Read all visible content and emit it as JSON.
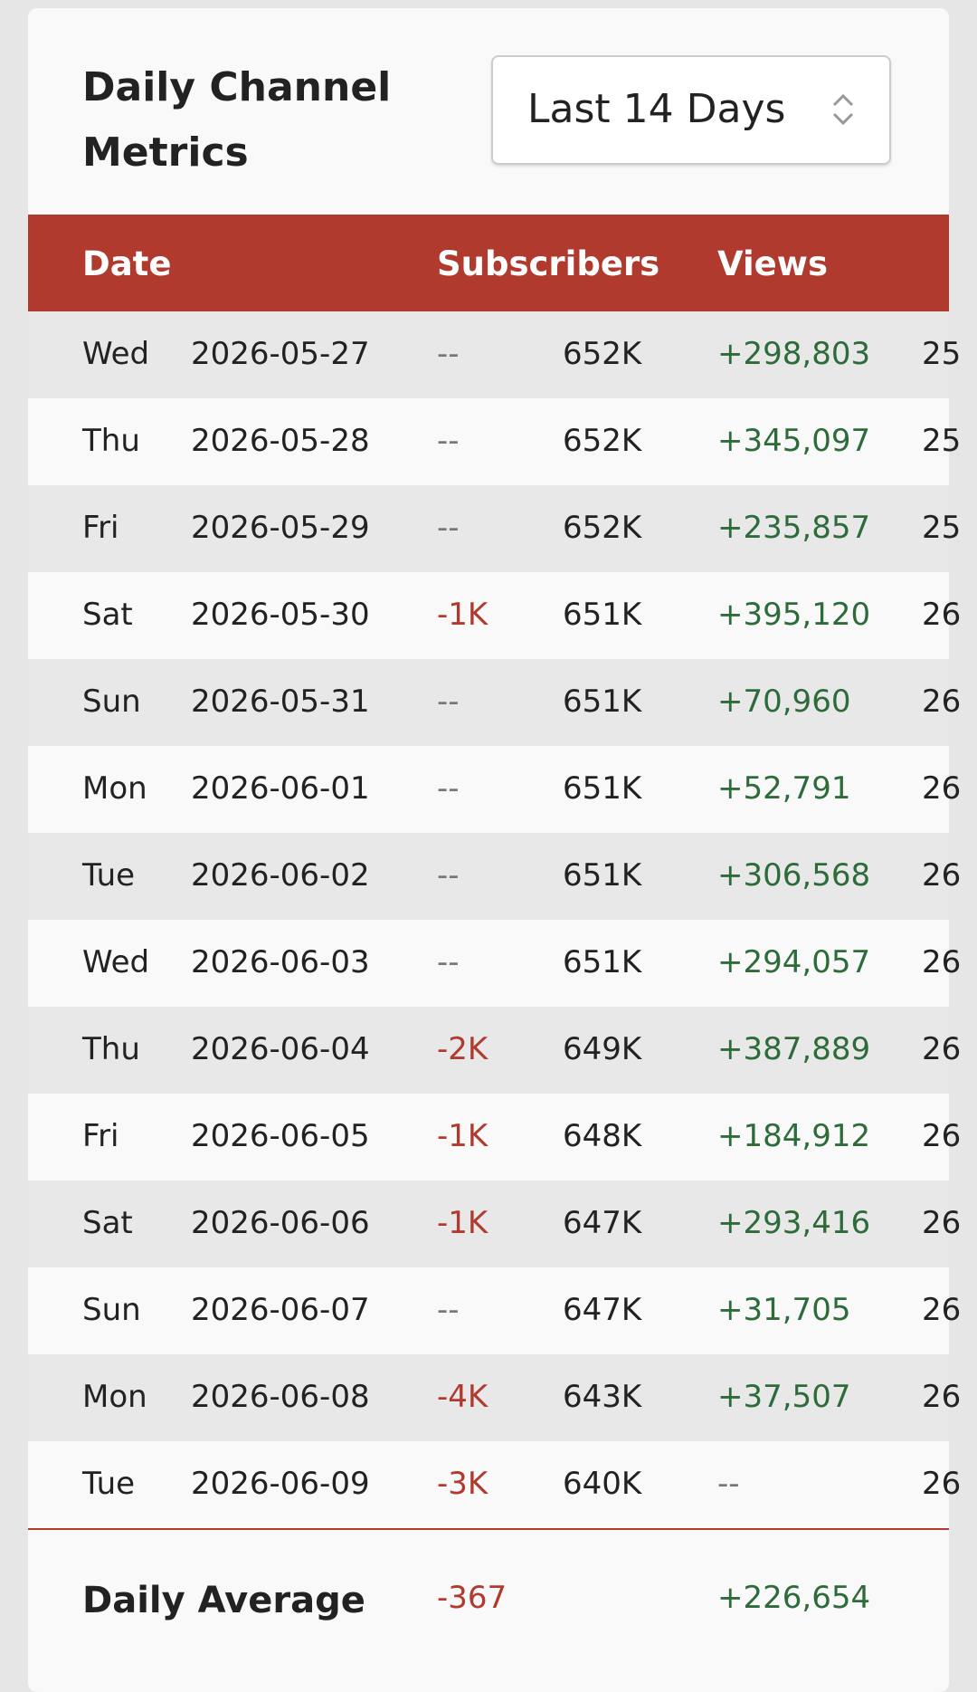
{
  "header": {
    "title": "Daily Channel Metrics",
    "range_select": "Last 14 Days"
  },
  "table": {
    "columns": [
      "Date",
      "Subscribers",
      "Views"
    ],
    "rows": [
      [
        "Wed",
        "2026-05-27",
        "--",
        "652K",
        "+298,803",
        "25"
      ],
      [
        "Thu",
        "2026-05-28",
        "--",
        "652K",
        "+345,097",
        "25"
      ],
      [
        "Fri",
        "2026-05-29",
        "--",
        "652K",
        "+235,857",
        "25"
      ],
      [
        "Sat",
        "2026-05-30",
        "-1K",
        "651K",
        "+395,120",
        "26"
      ],
      [
        "Sun",
        "2026-05-31",
        "--",
        "651K",
        "+70,960",
        "26"
      ],
      [
        "Mon",
        "2026-06-01",
        "--",
        "651K",
        "+52,791",
        "26"
      ],
      [
        "Tue",
        "2026-06-02",
        "--",
        "651K",
        "+306,568",
        "26"
      ],
      [
        "Wed",
        "2026-06-03",
        "--",
        "651K",
        "+294,057",
        "26"
      ],
      [
        "Thu",
        "2026-06-04",
        "-2K",
        "649K",
        "+387,889",
        "26"
      ],
      [
        "Fri",
        "2026-06-05",
        "-1K",
        "648K",
        "+184,912",
        "26"
      ],
      [
        "Sat",
        "2026-06-06",
        "-1K",
        "647K",
        "+293,416",
        "26"
      ],
      [
        "Sun",
        "2026-06-07",
        "--",
        "647K",
        "+31,705",
        "26"
      ],
      [
        "Mon",
        "2026-06-08",
        "-4K",
        "643K",
        "+37,507",
        "26"
      ],
      [
        "Tue",
        "2026-06-09",
        "-3K",
        "640K",
        "--",
        "26"
      ]
    ],
    "footer": [
      "Daily Average",
      "-367",
      "+226,654"
    ]
  }
}
